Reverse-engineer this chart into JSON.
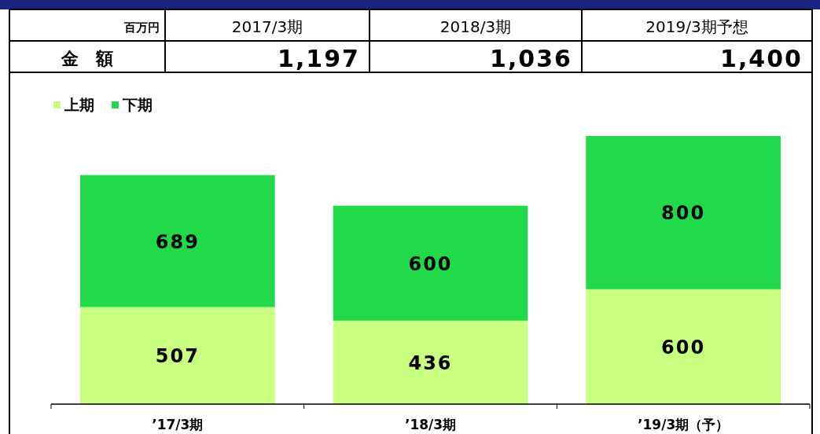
{
  "chart_data": {
    "type": "bar",
    "stacked": true,
    "categories": [
      "’17/3期",
      "’18/3期",
      "’19/3期（予）"
    ],
    "series": [
      {
        "name": "上期",
        "color": "#c8ff80",
        "values": [
          507,
          436,
          600
        ]
      },
      {
        "name": "下期",
        "color": "#22d94a",
        "values": [
          689,
          600,
          800
        ]
      }
    ],
    "data_labels": true,
    "legend": "top left",
    "annotations": [
      "百万円",
      "2017/3期",
      "2018/3期",
      "2019/3期予想",
      "金　額",
      "1,197",
      "1,036",
      "1,400"
    ]
  }
}
